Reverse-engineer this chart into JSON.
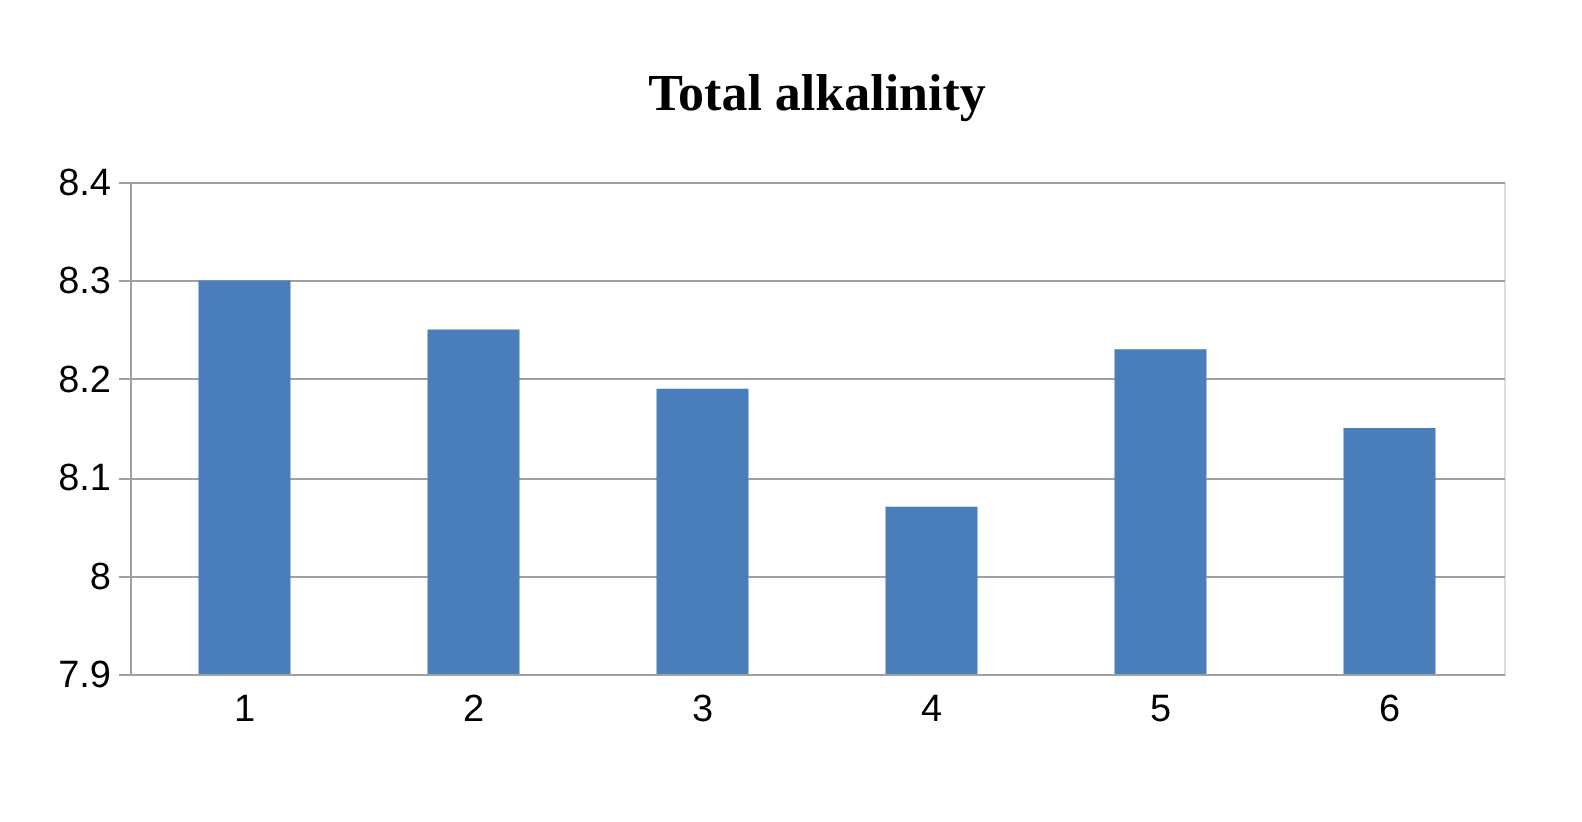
{
  "chart_data": {
    "type": "bar",
    "title": "Total alkalinity",
    "categories": [
      "1",
      "2",
      "3",
      "4",
      "5",
      "6"
    ],
    "values": [
      8.3,
      8.25,
      8.19,
      8.07,
      8.23,
      8.15
    ],
    "color": "#4a7ebb",
    "ylim": [
      7.9,
      8.4
    ],
    "yticks": [
      7.9,
      8,
      8.1,
      8.2,
      8.3,
      8.4
    ],
    "grid": "y"
  }
}
